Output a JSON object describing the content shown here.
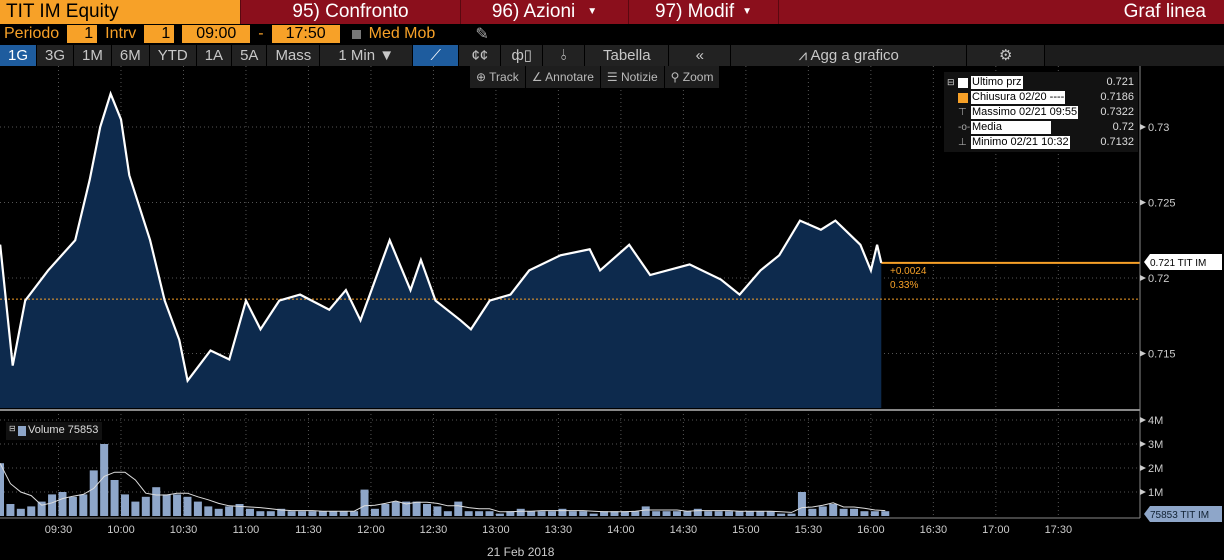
{
  "header": {
    "ticker": "TIT IM Equity",
    "confronto": "95) Confronto",
    "azioni": "96) Azioni",
    "modif": "97) Modif",
    "title": "Graf linea"
  },
  "settings": {
    "periodo_label": "Periodo",
    "periodo": "1",
    "intrv_label": "Intrv",
    "intrv": "1",
    "start": "09:00",
    "dash": "-",
    "end": "17:50",
    "med_mob": "Med Mob"
  },
  "toolbar": {
    "ranges": [
      "1G",
      "3G",
      "1M",
      "6M",
      "YTD",
      "1A",
      "5A",
      "Mass"
    ],
    "interval": "1 Min ▼",
    "tabella": "Tabella",
    "collapse": "«",
    "agg": "Agg a grafico"
  },
  "subtoolbar": {
    "track": "Track",
    "annotare": "Annotare",
    "notizie": "Notizie",
    "zoom": "Zoom"
  },
  "legend": {
    "items": [
      {
        "name": "Ultimo prz",
        "value": "0.721",
        "color": "#ffffff"
      },
      {
        "name": "Chiusura 02/20 ----",
        "value": "0.7186",
        "color": "#f7a128"
      },
      {
        "name": "Massimo 02/21 09:55",
        "value": "0.7322"
      },
      {
        "name": "Media",
        "value": "0.72"
      },
      {
        "name": "Minimo 02/21 10:32",
        "value": "0.7132"
      }
    ]
  },
  "annotations": {
    "change": "+0.0024",
    "change_pct": "0.33%",
    "last_tag": "0.721 TIT IM",
    "volume_tag": "75853 TIT IM",
    "volume_label": "Volume 75853",
    "date": "21 Feb 2018"
  },
  "chart_data": {
    "type": "line",
    "title": "TIT IM Equity",
    "x_ticks": [
      "09:30",
      "10:00",
      "10:30",
      "11:00",
      "11:30",
      "12:00",
      "12:30",
      "13:00",
      "13:30",
      "14:00",
      "14:30",
      "15:00",
      "15:30",
      "16:00",
      "16:30",
      "17:00",
      "17:30"
    ],
    "y_ticks": [
      "0.73",
      "0.725",
      "0.72",
      "0.715"
    ],
    "ylim": [
      0.7112,
      0.7352
    ],
    "xlim": [
      "09:00",
      "17:50"
    ],
    "prev_close": 0.7186,
    "last": 0.721,
    "price": {
      "time": [
        "09:00",
        "09:02",
        "09:08",
        "09:14",
        "09:25",
        "09:38",
        "09:45",
        "09:50",
        "09:55",
        "10:00",
        "10:04",
        "10:14",
        "10:21",
        "10:28",
        "10:32",
        "10:43",
        "10:52",
        "11:00",
        "11:07",
        "11:16",
        "11:26",
        "11:40",
        "11:48",
        "11:55",
        "12:09",
        "12:19",
        "12:24",
        "12:31",
        "12:43",
        "12:48",
        "12:57",
        "13:07",
        "13:16",
        "13:31",
        "13:45",
        "13:50",
        "14:04",
        "14:14",
        "14:33",
        "14:48",
        "14:57",
        "15:07",
        "15:16",
        "15:26",
        "15:36",
        "15:43",
        "15:55",
        "16:00",
        "16:03",
        "16:05"
      ],
      "values": [
        0.7215,
        0.7222,
        0.7142,
        0.7185,
        0.7205,
        0.7225,
        0.7265,
        0.73,
        0.7322,
        0.7305,
        0.7268,
        0.7225,
        0.7185,
        0.7159,
        0.7132,
        0.7152,
        0.7146,
        0.7185,
        0.7166,
        0.7185,
        0.7189,
        0.7179,
        0.7192,
        0.7172,
        0.7225,
        0.7192,
        0.7212,
        0.7185,
        0.7172,
        0.7166,
        0.7185,
        0.7189,
        0.7205,
        0.7215,
        0.7219,
        0.7205,
        0.7222,
        0.7202,
        0.7209,
        0.7199,
        0.7189,
        0.7205,
        0.7215,
        0.7238,
        0.7232,
        0.7238,
        0.7222,
        0.7205,
        0.7222,
        0.721
      ]
    },
    "volume": {
      "ylabel_ticks": [
        "4M",
        "3M",
        "2M",
        "1M"
      ],
      "start": "09:00",
      "step_minutes": 5,
      "unit": "M",
      "values": [
        2.2,
        0.5,
        0.3,
        0.4,
        0.6,
        0.9,
        1.0,
        0.8,
        0.9,
        1.9,
        3.0,
        1.5,
        0.9,
        0.6,
        0.8,
        1.2,
        0.9,
        0.9,
        0.8,
        0.6,
        0.4,
        0.3,
        0.4,
        0.5,
        0.3,
        0.2,
        0.2,
        0.3,
        0.2,
        0.2,
        0.2,
        0.2,
        0.2,
        0.2,
        0.2,
        1.1,
        0.3,
        0.5,
        0.6,
        0.6,
        0.6,
        0.5,
        0.4,
        0.2,
        0.6,
        0.2,
        0.2,
        0.2,
        0.1,
        0.2,
        0.3,
        0.2,
        0.2,
        0.2,
        0.3,
        0.2,
        0.2,
        0.1,
        0.2,
        0.2,
        0.2,
        0.2,
        0.4,
        0.2,
        0.2,
        0.2,
        0.2,
        0.3,
        0.2,
        0.2,
        0.2,
        0.2,
        0.2,
        0.2,
        0.2,
        0.1,
        0.1,
        1.0,
        0.3,
        0.4,
        0.5,
        0.3,
        0.3,
        0.2,
        0.2,
        0.2
      ]
    }
  },
  "colors": {
    "ticker_bg": "#f7a128",
    "header_bg": "#8b0f1c",
    "active": "#1e5c9e",
    "area": "#0d2a4d",
    "volume": "#8ea6c9"
  }
}
